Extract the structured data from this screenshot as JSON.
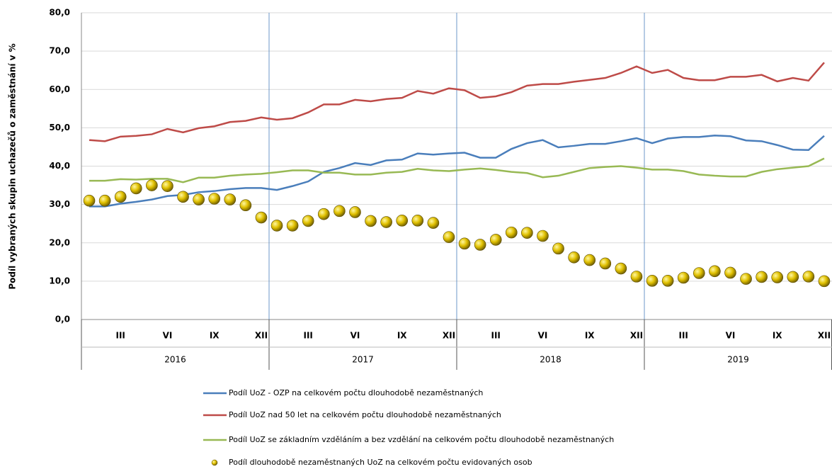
{
  "chart_data": {
    "type": "line",
    "y_label": "Podíl vybraných skupin uchazečů o zaměstnání v %",
    "categories": [
      null,
      null,
      "III",
      null,
      null,
      "VI",
      null,
      null,
      "IX",
      null,
      null,
      "XII",
      null,
      null,
      "III",
      null,
      null,
      "VI",
      null,
      null,
      "IX",
      null,
      null,
      "XII",
      null,
      null,
      "III",
      null,
      null,
      "VI",
      null,
      null,
      "IX",
      null,
      null,
      "XII",
      null,
      null,
      "III",
      null,
      null,
      "VI",
      null,
      null,
      "IX",
      null,
      null,
      "XII"
    ],
    "years": [
      "2016",
      "2017",
      "2018",
      "2019"
    ],
    "ylim": [
      0,
      80
    ],
    "yticks": [
      {
        "value": 0,
        "label": "0,0"
      },
      {
        "value": 10,
        "label": "10,0"
      },
      {
        "value": 20,
        "label": "20,0"
      },
      {
        "value": 30,
        "label": "30,0"
      },
      {
        "value": 40,
        "label": "40,0"
      },
      {
        "value": 50,
        "label": "50,0"
      },
      {
        "value": 60,
        "label": "60,0"
      },
      {
        "value": 70,
        "label": "70,0"
      },
      {
        "value": 80,
        "label": "80,0"
      }
    ],
    "grid": true,
    "legend": "bottom",
    "series": [
      {
        "name": "Podíl UoZ - OZP na celkovém počtu dlouhodobě nezaměstnaných",
        "color": "#4a7ebb",
        "style": "line",
        "values": [
          29.5,
          29.5,
          30.2,
          30.7,
          31.3,
          32.2,
          32.5,
          33.2,
          33.5,
          34,
          34.3,
          34.3,
          33.8,
          34.8,
          36,
          38.5,
          39.5,
          40.8,
          40.3,
          41.5,
          41.7,
          43.3,
          43,
          43.3,
          43.5,
          42.2,
          42.2,
          44.5,
          46,
          46.8,
          44.9,
          45.3,
          45.8,
          45.8,
          46.5,
          47.3,
          46,
          47.2,
          47.6,
          47.6,
          48,
          47.8,
          46.7,
          46.5,
          45.5,
          44.3,
          44.2,
          47.9
        ]
      },
      {
        "name": "Podíl UoZ nad 50 let na celkovém počtu dlouhodobě nezaměstnaných",
        "color": "#be4b48",
        "style": "line",
        "values": [
          46.8,
          46.5,
          47.7,
          47.9,
          48.3,
          49.7,
          48.8,
          49.9,
          50.4,
          51.5,
          51.8,
          52.7,
          52.1,
          52.5,
          54,
          56.1,
          56.1,
          57.3,
          56.9,
          57.5,
          57.8,
          59.6,
          58.9,
          60.3,
          59.8,
          57.8,
          58.2,
          59.3,
          61,
          61.4,
          61.4,
          62,
          62.5,
          63,
          64.3,
          66,
          64.3,
          65.1,
          63,
          62.4,
          62.4,
          63.3,
          63.3,
          63.8,
          62.1,
          63,
          62.3,
          67
        ]
      },
      {
        "name": "Podíl UoZ se základním vzděláním a bez vzdělání na celkovém počtu dlouhodobě nezaměstnaných",
        "color": "#98b954",
        "style": "line",
        "values": [
          36.2,
          36.2,
          36.6,
          36.5,
          36.7,
          36.7,
          35.8,
          37,
          37,
          37.5,
          37.8,
          38,
          38.4,
          38.9,
          38.9,
          38.3,
          38.3,
          37.8,
          37.8,
          38.3,
          38.5,
          39.3,
          38.9,
          38.7,
          39.1,
          39.4,
          39,
          38.5,
          38.2,
          37.1,
          37.5,
          38.5,
          39.5,
          39.8,
          40,
          39.6,
          39.1,
          39.1,
          38.7,
          37.8,
          37.5,
          37.3,
          37.3,
          38.5,
          39.2,
          39.6,
          40,
          42
        ]
      },
      {
        "name": "Podíl dlouhodobě nezaměstnaných UoZ na celkovém počtu evidovaných osob",
        "color": "#e0c000",
        "style": "markers",
        "values": [
          31,
          31,
          32,
          34.2,
          35,
          34.8,
          32,
          31.3,
          31.5,
          31.3,
          29.8,
          26.6,
          24.5,
          24.5,
          25.7,
          27.5,
          28.3,
          28,
          25.7,
          25.4,
          25.8,
          25.8,
          25.2,
          21.5,
          19.8,
          19.5,
          20.8,
          22.7,
          22.6,
          21.8,
          18.5,
          16.2,
          15.5,
          14.6,
          13.3,
          11.2,
          10.1,
          10.1,
          10.9,
          12.1,
          12.6,
          12.2,
          10.6,
          11.1,
          11,
          11.1,
          11.2,
          10
        ]
      }
    ]
  }
}
